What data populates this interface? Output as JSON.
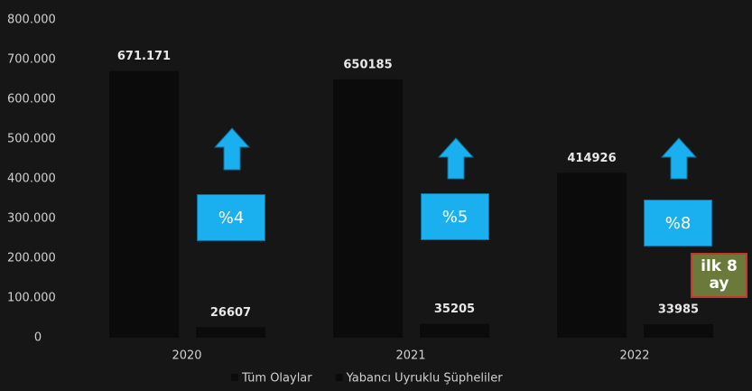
{
  "chart_data": {
    "type": "bar",
    "categories": [
      "2020",
      "2021",
      "2022"
    ],
    "series": [
      {
        "name": "Tüm Olaylar",
        "color": "#0b0b0b",
        "values": [
          671171,
          650185,
          414926
        ],
        "value_labels": [
          "671.171",
          "650185",
          "414926"
        ]
      },
      {
        "name": "Yabancı Uyruklu Şüpheliler",
        "color": "#0b0b0b",
        "values": [
          26607,
          35205,
          33985
        ],
        "value_labels": [
          "26607",
          "35205",
          "33985"
        ]
      }
    ],
    "ylim": [
      0,
      800000
    ],
    "yticks": [
      0,
      {
        "value": 100000,
        "label": "100.000"
      },
      {
        "value": 200000,
        "label": "200.000"
      },
      {
        "value": 300000,
        "label": "300.000"
      },
      {
        "value": 400000,
        "label": "400.000"
      },
      {
        "value": 500000,
        "label": "500.000"
      },
      {
        "value": 600000,
        "label": "600.000"
      },
      {
        "value": 700000,
        "label": "700.000"
      },
      {
        "value": 800000,
        "label": "800.000"
      }
    ],
    "grid": false,
    "legend": "bottom",
    "annotations": [
      "%4",
      "%5",
      "%8",
      "ilk 8 ay"
    ]
  }
}
